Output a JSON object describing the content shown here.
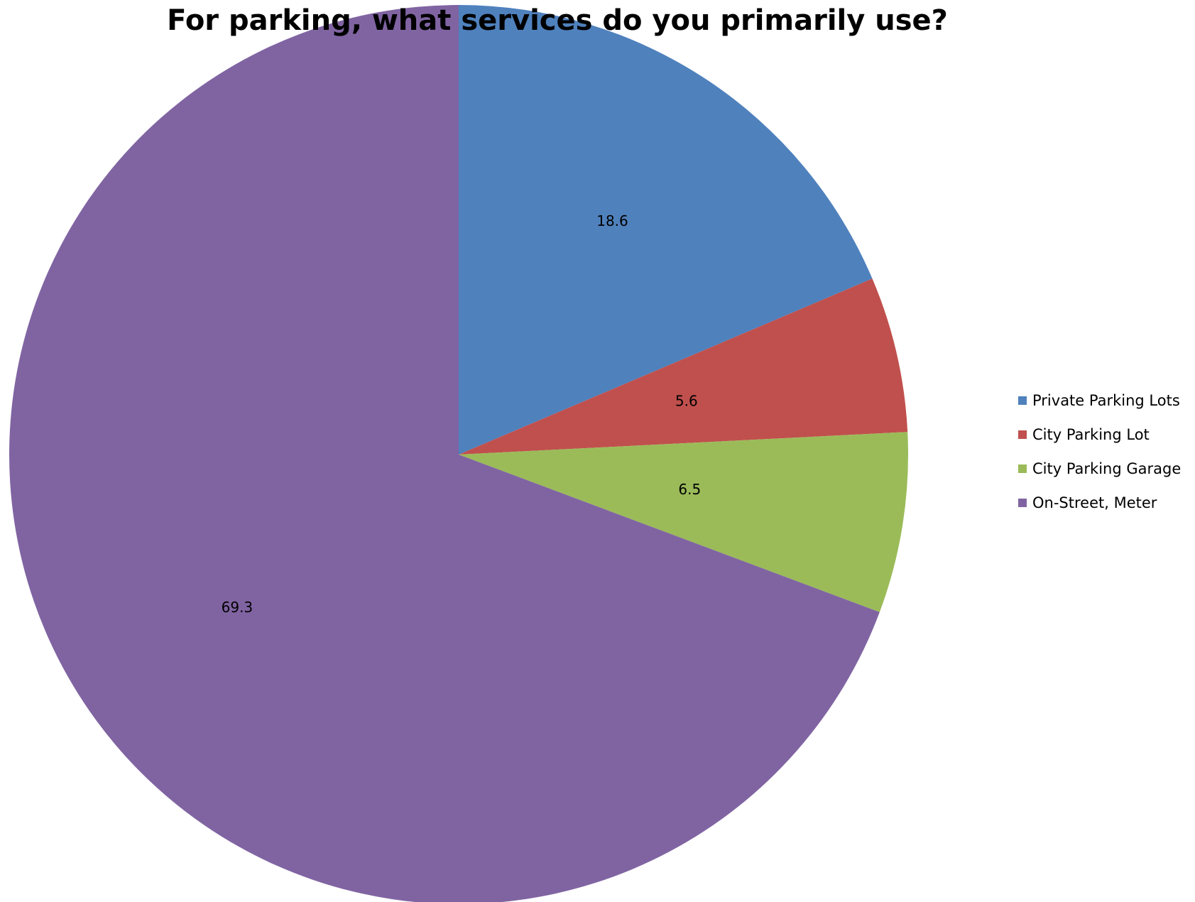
{
  "chart_data": {
    "type": "pie",
    "title": "For parking, what services do you primarily use?",
    "categories": [
      "Private Parking Lots",
      "City Parking Lot",
      "City Parking Garage",
      "On-Street, Meter"
    ],
    "values": [
      18.6,
      5.6,
      6.5,
      69.3
    ],
    "data_labels": [
      "18.6",
      "5.6",
      "6.5",
      "69.3"
    ],
    "colors": [
      "#4F81BD",
      "#C0504D",
      "#9BBB59",
      "#8064A2"
    ],
    "start_angle": "12 o'clock",
    "direction": "clockwise",
    "legend_position": "right"
  }
}
